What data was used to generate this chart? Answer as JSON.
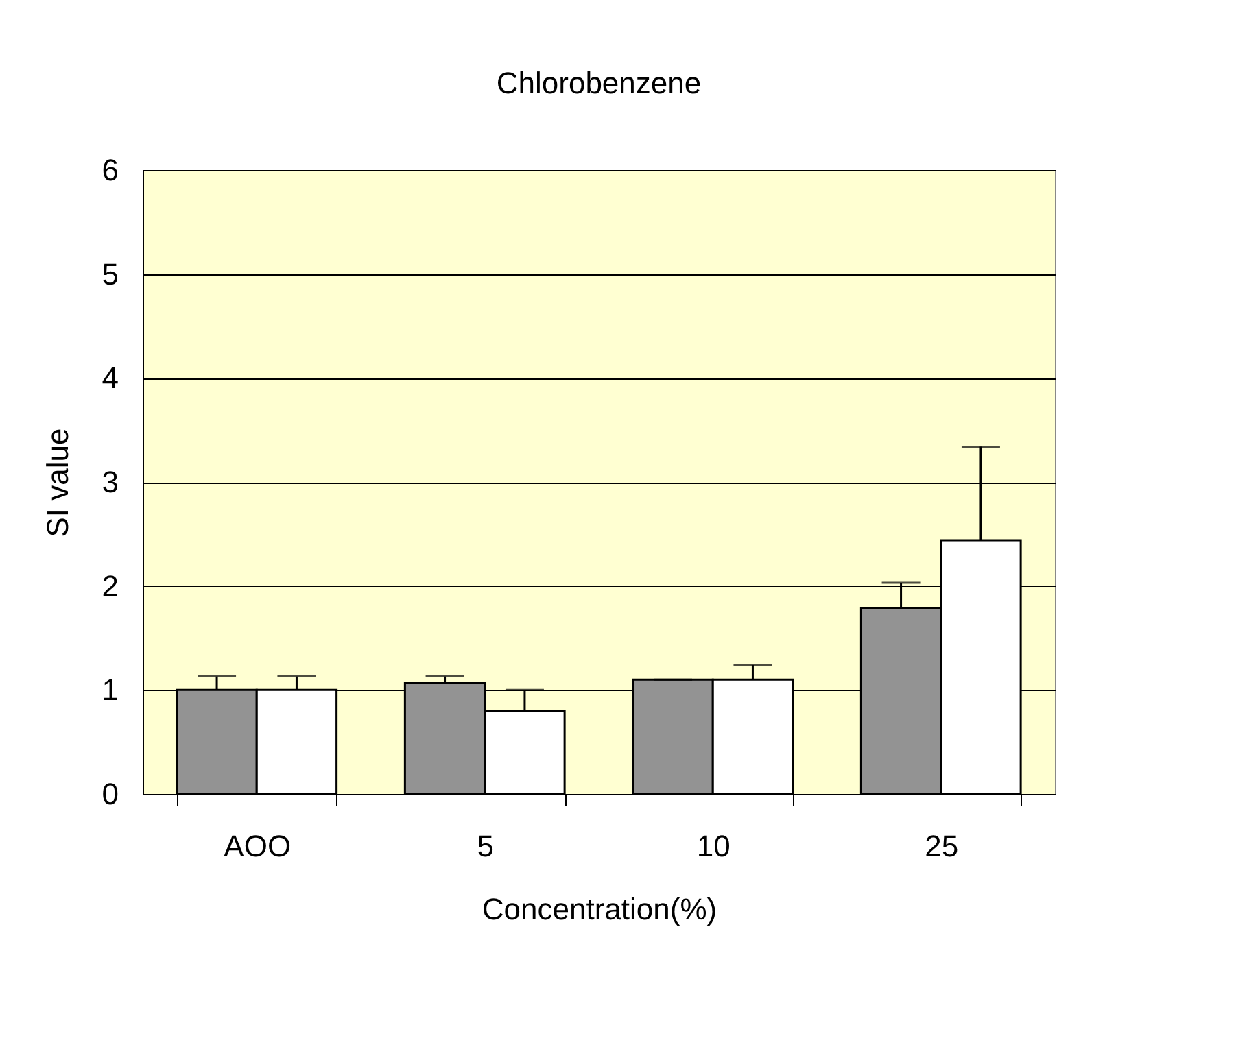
{
  "chart_data": {
    "type": "bar",
    "title": "Chlorobenzene",
    "xlabel": "Concentration(%)",
    "ylabel": "SI value",
    "categories": [
      "AOO",
      "5",
      "10",
      "25"
    ],
    "series": [
      {
        "color": "#939393",
        "values": [
          1.0,
          1.07,
          1.1,
          1.79
        ],
        "errors": [
          [
            1.0,
            1.13
          ],
          [
            1.07,
            1.13
          ],
          [
            1.1,
            1.1
          ],
          [
            1.79,
            2.03
          ]
        ]
      },
      {
        "color": "#ffffff",
        "values": [
          1.0,
          0.8,
          1.1,
          2.44
        ],
        "errors": [
          [
            1.0,
            1.13
          ],
          [
            0.8,
            1.0
          ],
          [
            1.1,
            1.24
          ],
          [
            2.44,
            3.34
          ]
        ]
      }
    ],
    "ylim": [
      0,
      6
    ],
    "yticks": [
      0,
      1,
      2,
      3,
      4,
      5,
      6
    ],
    "grid": "y",
    "legend": false
  }
}
